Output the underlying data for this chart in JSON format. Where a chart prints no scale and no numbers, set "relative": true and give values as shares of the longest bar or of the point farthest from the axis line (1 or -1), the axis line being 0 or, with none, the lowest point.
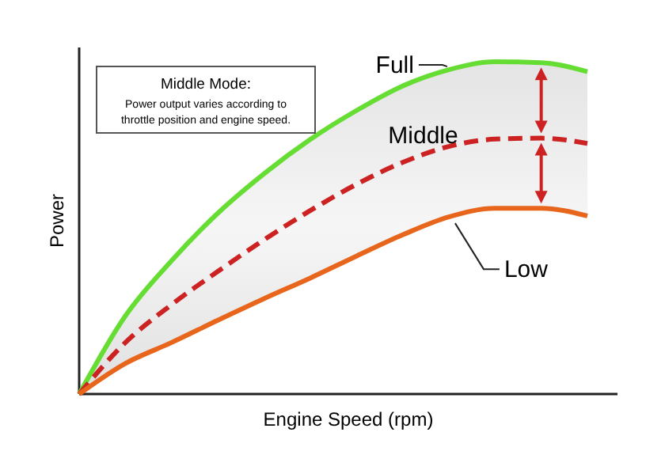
{
  "chart_data": {
    "type": "line",
    "relative": true,
    "xlabel": "Engine Speed (rpm)",
    "ylabel": "Power",
    "categories": [
      null,
      null,
      null,
      null,
      null,
      null,
      null,
      null,
      null,
      null,
      null,
      null
    ],
    "legend": false,
    "annotations": [
      "Middle Mode:",
      "Power output varies according to throttle position and engine speed."
    ],
    "series": [
      {
        "name": "Full",
        "color": "#66dd33",
        "line_style": "solid",
        "values": [
          0,
          0.235,
          0.401,
          0.544,
          0.663,
          0.766,
          0.853,
          0.927,
          0.976,
          1,
          0.997,
          0.97
        ]
      },
      {
        "name": "Middle",
        "color": "#cc2222",
        "line_style": "dashed",
        "values": [
          0,
          0.155,
          0.269,
          0.369,
          0.464,
          0.552,
          0.631,
          0.697,
          0.745,
          0.767,
          0.77,
          0.754
        ],
        "lower": [
          0,
          0.092,
          0.155,
          0.222,
          0.287,
          0.349,
          0.415,
          0.479,
          0.533,
          0.559,
          0.559,
          0.536
        ],
        "upper": [
          0,
          0.235,
          0.401,
          0.544,
          0.663,
          0.766,
          0.853,
          0.927,
          0.976,
          1,
          0.997,
          0.97
        ]
      },
      {
        "name": "Low",
        "color": "#e8651c",
        "line_style": "solid",
        "values": [
          0,
          0.092,
          0.155,
          0.222,
          0.287,
          0.349,
          0.415,
          0.479,
          0.533,
          0.559,
          0.559,
          0.536
        ]
      }
    ]
  }
}
